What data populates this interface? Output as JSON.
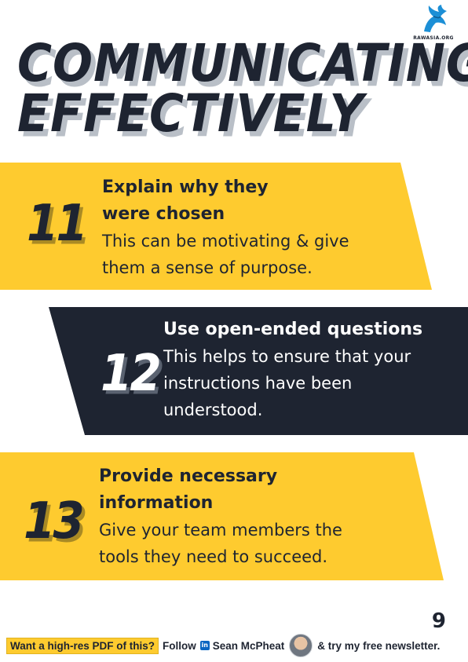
{
  "header": {
    "title_line_1": "COMMUNICATING",
    "title_line_2": "EFFECTIVELY",
    "logo_text": "RAWASIA.ORG",
    "logo_icon": "gryphon-icon"
  },
  "items": [
    {
      "number": "11",
      "title_line_1": "Explain why they",
      "title_line_2": "were chosen",
      "desc_line_1": "This can be motivating & give",
      "desc_line_2": "them a sense of purpose."
    },
    {
      "number": "12",
      "title_line_1": "Use open-ended questions",
      "desc_line_1": "This helps to ensure that your",
      "desc_line_2": "instructions have been",
      "desc_line_3": "understood."
    },
    {
      "number": "13",
      "title_line_1": "Provide necessary",
      "title_line_2": "information",
      "desc_line_1": "Give your team members the",
      "desc_line_2": "tools they need to succeed."
    }
  ],
  "page_number": "9",
  "footer": {
    "cta": "Want a high-res PDF of this?",
    "follow": "Follow",
    "linkedin_icon_text": "in",
    "author": "Sean McPheat",
    "newsletter": "& try my free newsletter."
  },
  "colors": {
    "yellow": "#fecb2f",
    "navy": "#1e2431",
    "shadow": "#b9bfc7"
  }
}
